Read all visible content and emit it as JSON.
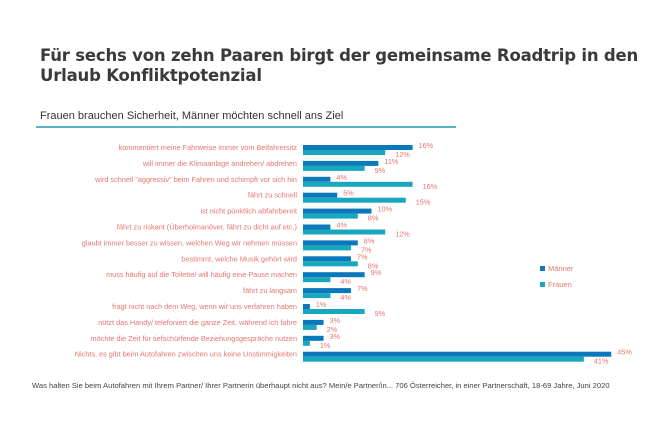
{
  "title": "Für sechs von zehn Paaren birgt der gemeinsame Roadtrip in den Urlaub Konfliktpotenzial",
  "subtitle": "Frauen brauchen Sicherheit, Männer möchten schnell ans Ziel",
  "footer": "Was halten Sie beim Autofahren mit Ihrem Partner/ Ihrer Partnerin überhaupt nicht aus? Mein/e Partner/in... 706 Österreicher, in einer Partnerschaft, 18-69 Jahre, Juni 2020",
  "colors": {
    "maenner": "#0b78bb",
    "frauen": "#19a6bf",
    "label": "#e5766f"
  },
  "chart_data": {
    "type": "bar",
    "orientation": "horizontal",
    "title": "Frauen brauchen Sicherheit, Männer möchten schnell ans Ziel",
    "categories": [
      "kommentiert meine Fahrweise immer vom Beifahrersitz",
      "will immer die Klimaanlage andrehen/ abdrehen",
      "wird schnell \"aggressiv\" beim Fahren und schimpft vor sich hin",
      "fährt zu schnell",
      "ist nicht pünktlich abfahrbereit",
      "fährt zu riskant (Überholmanöver, fährt zu dicht auf etc.)",
      "glaubt immer besser zu wissen, welchen Weg wir nehmen müssen",
      "bestimmt, welche Musik gehört wird",
      "muss häufig auf die Toilette/ will häufig eine Pause machen",
      "fährt zu langsam",
      "fragt nicht nach dem Weg, wenn wir uns verfahren haben",
      "nützt das Handy/ telefoniert die ganze Zeit, während ich fahre",
      "möchte die Zeit für tiefschürfende Beziehungsgespräche nutzen",
      "Nichts, es gibt beim Autofahren zwischen uns keine Unstimmigkeiten"
    ],
    "series": [
      {
        "name": "Männer",
        "values": [
          16,
          11,
          4,
          5,
          10,
          4,
          8,
          7,
          9,
          7,
          1,
          3,
          3,
          45
        ]
      },
      {
        "name": "Frauen",
        "values": [
          12,
          9,
          16,
          15,
          8,
          12,
          7,
          8,
          4,
          4,
          9,
          2,
          1,
          41
        ]
      }
    ],
    "value_suffix": "%",
    "legend": "right",
    "grid": false
  }
}
